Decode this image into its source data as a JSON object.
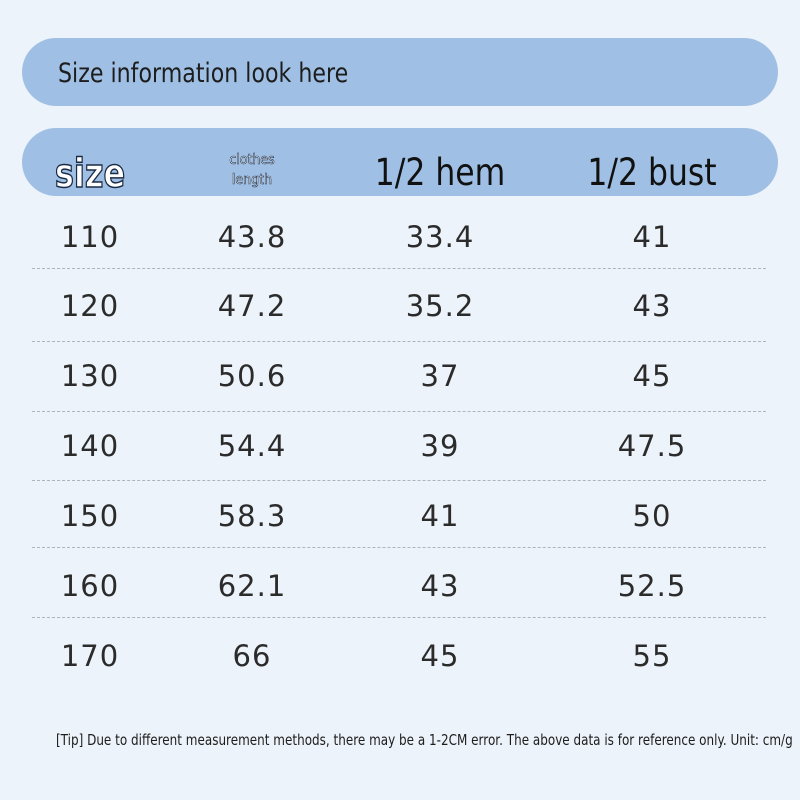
{
  "header": {
    "title": "Size information look here"
  },
  "table": {
    "columns": [
      "size",
      "clothes length",
      "1/2 hem",
      "1/2 bust"
    ],
    "rows": [
      [
        "110",
        "43.8",
        "33.4",
        "41"
      ],
      [
        "120",
        "47.2",
        "35.2",
        "43"
      ],
      [
        "130",
        "50.6",
        "37",
        "45"
      ],
      [
        "140",
        "54.4",
        "39",
        "47.5"
      ],
      [
        "150",
        "58.3",
        "41",
        "50"
      ],
      [
        "160",
        "62.1",
        "43",
        "52.5"
      ],
      [
        "170",
        "66",
        "45",
        "55"
      ]
    ]
  },
  "tip": "[Tip] Due to different measurement methods, there may be a 1-2CM error. The above data is for reference only. Unit: cm/g"
}
